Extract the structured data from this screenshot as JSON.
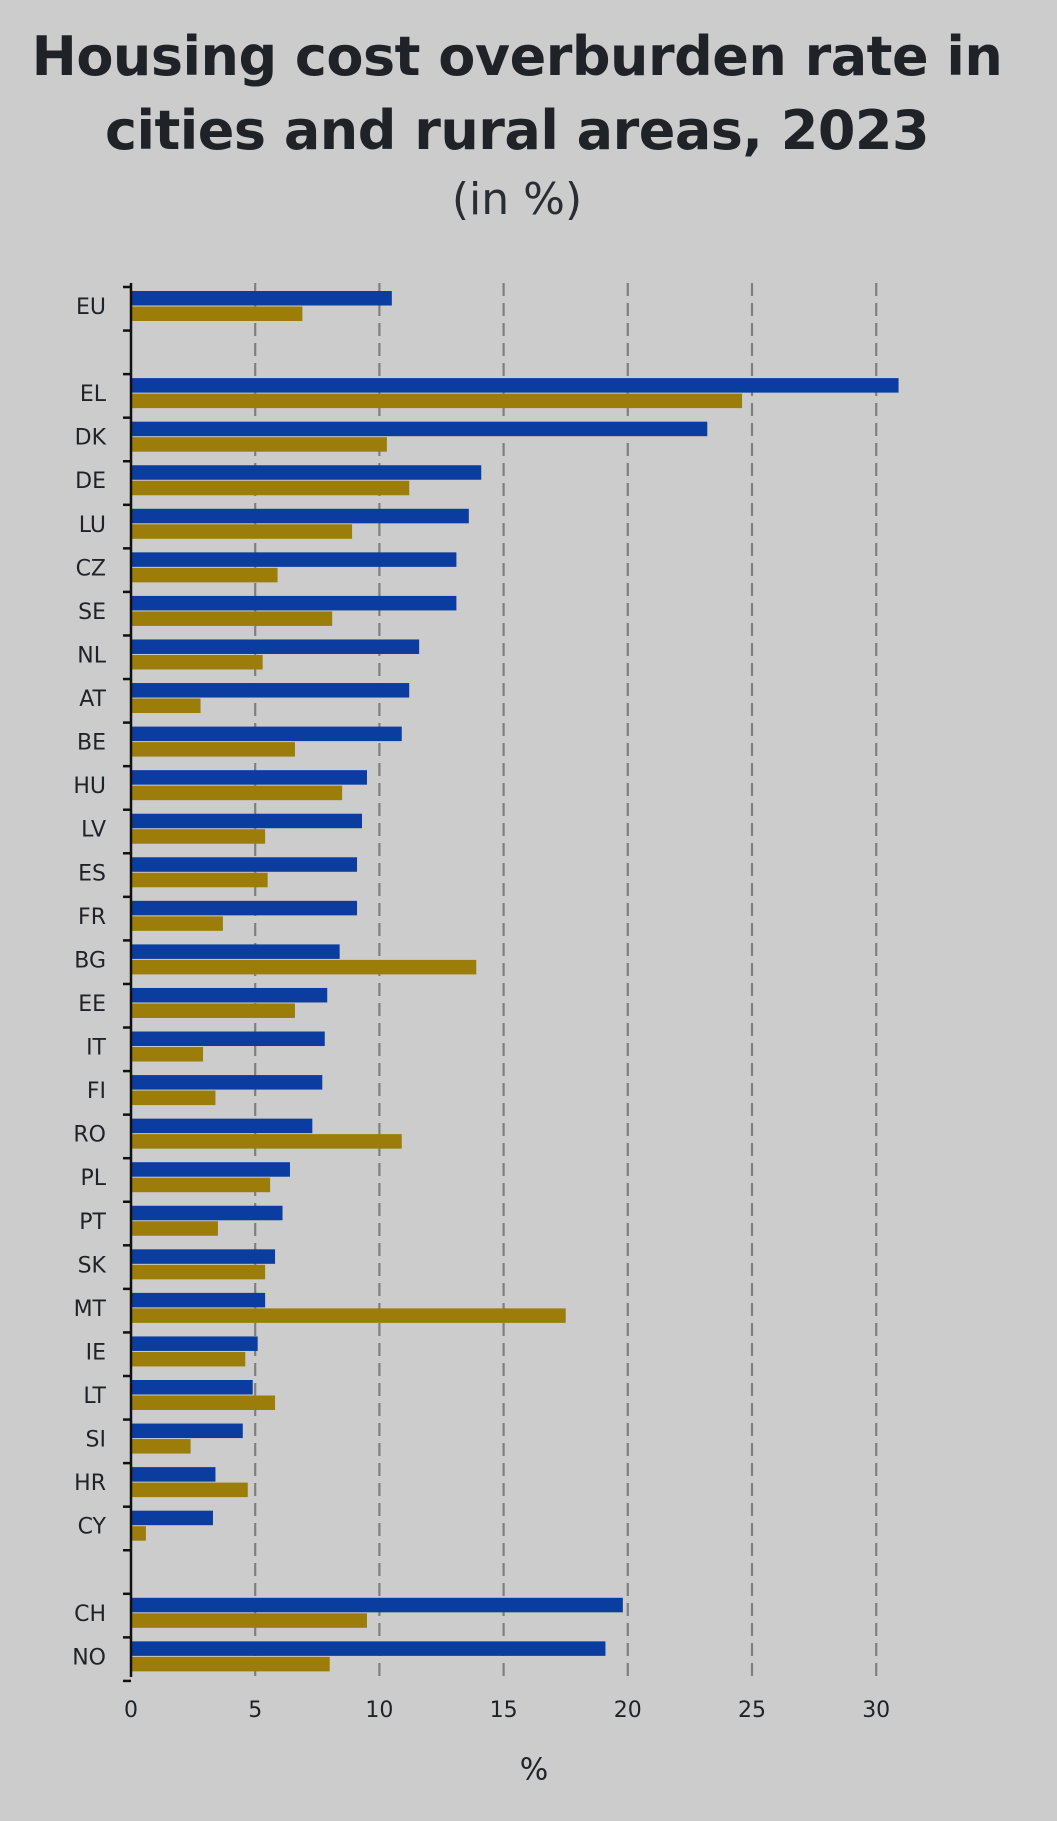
{
  "chart_data": {
    "type": "bar",
    "orientation": "horizontal",
    "title": "Housing cost overburden rate in cities and rural areas, 2023",
    "title_lines": [
      "Housing cost overburden rate in",
      "cities and rural areas, 2023"
    ],
    "subtitle": "(in %)",
    "xlabel": "%",
    "ylabel": "",
    "xlim": [
      0,
      32
    ],
    "xticks": [
      0,
      5,
      10,
      15,
      20,
      25,
      30
    ],
    "grid": "vertical dashed",
    "legend": "none",
    "colors": [
      "#0b3c9f",
      "#9c7d09"
    ],
    "categories": [
      "EU",
      "",
      "EL",
      "DK",
      "DE",
      "LU",
      "CZ",
      "SE",
      "NL",
      "AT",
      "BE",
      "HU",
      "LV",
      "ES",
      "FR",
      "BG",
      "EE",
      "IT",
      "FI",
      "RO",
      "PL",
      "PT",
      "SK",
      "MT",
      "IE",
      "LT",
      "SI",
      "HR",
      "CY",
      "",
      "CH",
      "NO"
    ],
    "series": [
      {
        "values": [
          10.5,
          null,
          30.9,
          23.2,
          14.1,
          13.6,
          13.1,
          13.1,
          11.6,
          11.2,
          10.9,
          9.5,
          9.3,
          9.1,
          9.1,
          8.4,
          7.9,
          7.8,
          7.7,
          7.3,
          6.4,
          6.1,
          5.8,
          5.4,
          5.1,
          4.9,
          4.5,
          3.4,
          3.3,
          null,
          19.8,
          19.1
        ]
      },
      {
        "values": [
          6.9,
          null,
          24.6,
          10.3,
          11.2,
          8.9,
          5.9,
          8.1,
          5.3,
          2.8,
          6.6,
          8.5,
          5.4,
          5.5,
          3.7,
          13.9,
          6.6,
          2.9,
          3.4,
          10.9,
          5.6,
          3.5,
          5.4,
          17.5,
          4.6,
          5.8,
          2.4,
          4.7,
          0.6,
          null,
          9.5,
          8.0
        ]
      }
    ]
  }
}
